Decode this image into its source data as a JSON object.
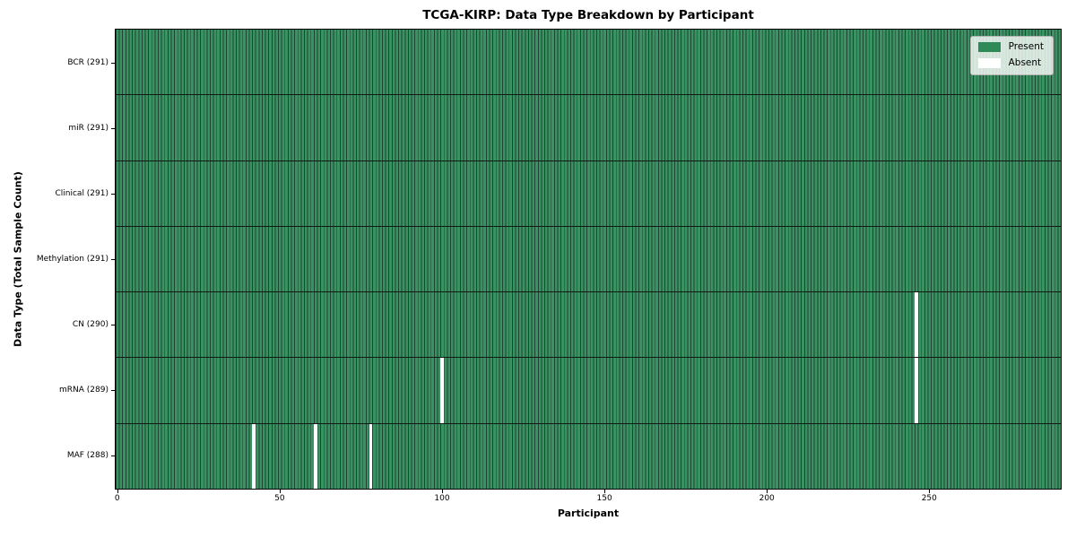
{
  "chart_data": {
    "type": "heatmap",
    "title": "TCGA-KIRP: Data Type Breakdown by Participant",
    "xlabel": "Participant",
    "ylabel": "Data Type (Total Sample Count)",
    "x_ticks": [
      0,
      50,
      100,
      150,
      200,
      250
    ],
    "x_range": [
      -0.5,
      290.5
    ],
    "n_participants": 291,
    "rows": [
      {
        "label": "BCR (291)",
        "data_type": "BCR",
        "total_samples": 291,
        "missing_participants": []
      },
      {
        "label": "miR (291)",
        "data_type": "miR",
        "total_samples": 291,
        "missing_participants": []
      },
      {
        "label": "Clinical (291)",
        "data_type": "Clinical",
        "total_samples": 291,
        "missing_participants": []
      },
      {
        "label": "Methylation (291)",
        "data_type": "Methylation",
        "total_samples": 291,
        "missing_participants": []
      },
      {
        "label": "CN (290)",
        "data_type": "CN",
        "total_samples": 290,
        "missing_participants": [
          246
        ]
      },
      {
        "label": "mRNA (289)",
        "data_type": "mRNA",
        "total_samples": 289,
        "missing_participants": [
          100,
          246
        ]
      },
      {
        "label": "MAF (288)",
        "data_type": "MAF",
        "total_samples": 288,
        "missing_participants": [
          42,
          61,
          78
        ]
      }
    ],
    "legend": [
      {
        "label": "Present",
        "color": "#2e8b57"
      },
      {
        "label": "Absent",
        "color": "#ffffff"
      }
    ],
    "legend_position": "upper right",
    "grid": false,
    "colors": {
      "present_fill": "#3a9161",
      "absent_fill": "#ffffff",
      "bar_edge": "#1f4433",
      "row_separator": "#101a12",
      "spine": "#000000",
      "legend_background": "rgba(255,255,255,0.8)"
    }
  }
}
